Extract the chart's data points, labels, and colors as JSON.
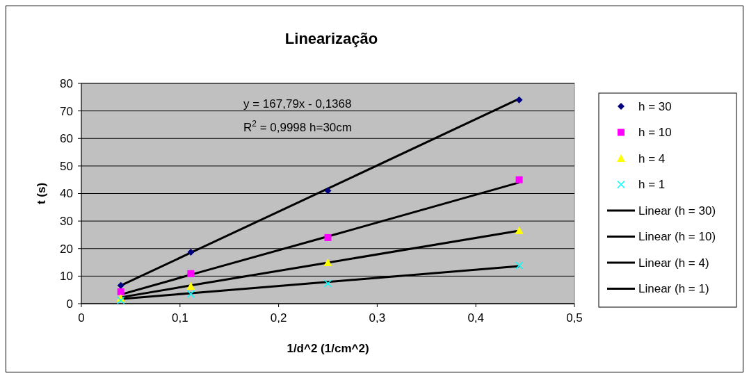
{
  "chart_data": {
    "type": "scatter",
    "title": "Linearização",
    "xlabel": "1/d^2 (1/cm^2)",
    "ylabel": "t (s)",
    "x": [
      0.04,
      0.111,
      0.25,
      0.444
    ],
    "series": [
      {
        "name": "h = 30",
        "color": "#000080",
        "marker": "diamond",
        "values": [
          6.6,
          18.7,
          41,
          74
        ]
      },
      {
        "name": "h = 10",
        "color": "#ff00ff",
        "marker": "square",
        "values": [
          4.3,
          10.9,
          24,
          45
        ]
      },
      {
        "name": "h = 4",
        "color": "#ffff00",
        "marker": "triangle",
        "values": [
          2,
          6.3,
          14.9,
          26.5
        ]
      },
      {
        "name": "h = 1",
        "color": "#00ffff",
        "marker": "cross",
        "values": [
          1.2,
          3.5,
          7.3,
          13.9
        ]
      },
      {
        "name": "Linear (h = 30)",
        "type": "line",
        "color": "#000000",
        "values": [
          6.6,
          18.5,
          41.8,
          74.4
        ]
      },
      {
        "name": "Linear (h = 10)",
        "type": "line",
        "color": "#000000",
        "values": [
          3.3,
          10.5,
          24.4,
          44
        ]
      },
      {
        "name": "Linear (h = 4)",
        "type": "line",
        "color": "#000000",
        "values": [
          2.3,
          6.6,
          14.9,
          26.5
        ]
      },
      {
        "name": "Linear (h = 1)",
        "type": "line",
        "color": "#000000",
        "values": [
          1.7,
          3.8,
          7.9,
          13.6
        ]
      }
    ],
    "xlim": [
      0,
      0.5
    ],
    "xticks": [
      0,
      {
        "value": 0.1,
        "label": "0,1"
      },
      {
        "value": 0.2,
        "label": "0,2"
      },
      {
        "value": 0.3,
        "label": "0,3"
      },
      {
        "value": 0.4,
        "label": "0,4"
      },
      {
        "value": 0.5,
        "label": "0,5"
      }
    ],
    "ylim": [
      0,
      80
    ],
    "yticks": [
      0,
      10,
      20,
      30,
      40,
      50,
      60,
      70,
      80
    ],
    "grid": "y",
    "legend": "right",
    "annotations": [
      "y = 167,79x - 0,1368",
      "R$^{2}$ = 0,9998  h=30cm"
    ]
  }
}
